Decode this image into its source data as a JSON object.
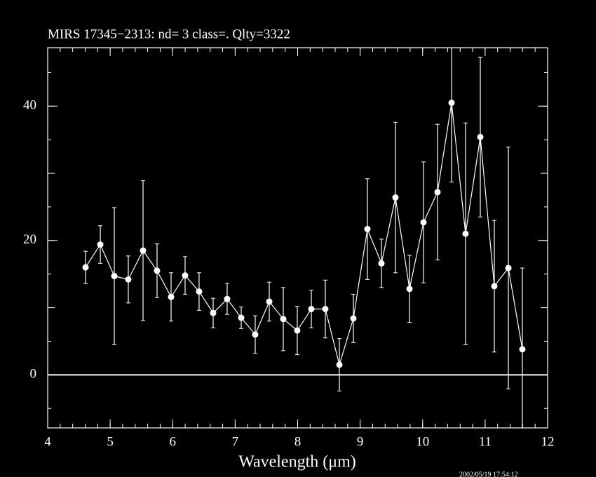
{
  "chart_data": {
    "type": "errorbar",
    "title": "MIRS 17345−2313:    nd= 3   class=.   Qlty=3322",
    "xlabel": "Wavelength (μm)",
    "timestamp": "2002/05/19 17:54:12",
    "xlim": [
      4,
      12
    ],
    "ylim": [
      -7.9,
      48.7
    ],
    "xticks": [
      4,
      5,
      6,
      7,
      8,
      9,
      10,
      11,
      12
    ],
    "yticks": [
      0,
      20,
      40
    ],
    "xminor_step": 0.2,
    "yminor_step": 5,
    "zero_line": true,
    "color": "#ffffff",
    "x": [
      4.606,
      4.842,
      5.066,
      5.29,
      5.526,
      5.75,
      5.975,
      6.199,
      6.423,
      6.648,
      6.872,
      7.097,
      7.321,
      7.546,
      7.77,
      7.994,
      8.219,
      8.443,
      8.668,
      8.892,
      9.116,
      9.341,
      9.565,
      9.79,
      10.014,
      10.238,
      10.463,
      10.687,
      10.923,
      11.147,
      11.372,
      11.596
    ],
    "values": [
      16.0,
      19.4,
      14.7,
      14.2,
      18.5,
      15.5,
      11.6,
      14.8,
      12.4,
      9.2,
      11.3,
      8.5,
      6.0,
      10.9,
      8.3,
      6.6,
      9.8,
      9.8,
      1.5,
      8.4,
      21.7,
      16.6,
      26.4,
      12.8,
      22.7,
      27.2,
      40.5,
      21.0,
      35.4,
      13.2,
      15.9,
      3.8
    ],
    "errors": [
      2.4,
      2.8,
      10.2,
      3.5,
      10.4,
      4.0,
      3.6,
      2.8,
      2.8,
      2.2,
      2.3,
      1.6,
      2.8,
      2.9,
      4.7,
      3.6,
      2.8,
      4.3,
      3.9,
      3.6,
      7.5,
      3.6,
      11.2,
      5.0,
      9.0,
      10.1,
      11.8,
      16.5,
      11.9,
      9.8,
      18.0,
      12.1
    ]
  }
}
